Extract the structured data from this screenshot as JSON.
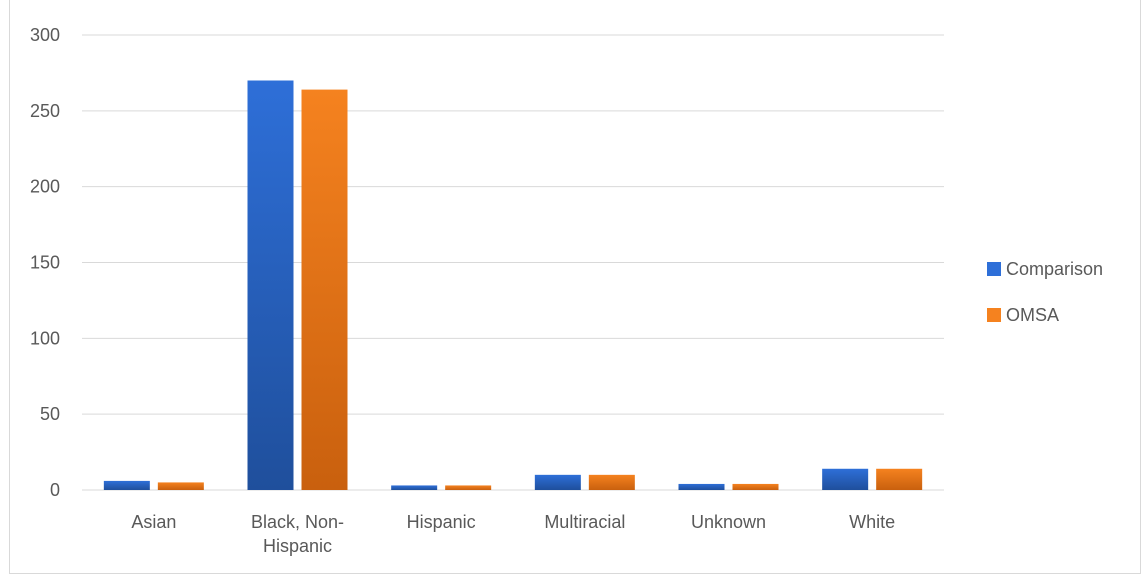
{
  "chart_data": {
    "type": "bar",
    "title": "",
    "xlabel": "",
    "ylabel": "",
    "categories": [
      [
        "Asian"
      ],
      [
        "Black, Non-",
        "Hispanic"
      ],
      [
        "Hispanic"
      ],
      [
        "Multiracial"
      ],
      [
        "Unknown"
      ],
      [
        "White"
      ]
    ],
    "series": [
      {
        "name": "Comparison",
        "color": "#2e6fd8",
        "colorDark": "#1f4f9c",
        "values": [
          6,
          270,
          3,
          10,
          4,
          14
        ]
      },
      {
        "name": "OMSA",
        "color": "#f5821f",
        "colorDark": "#c9600e",
        "values": [
          5,
          264,
          3,
          10,
          4,
          14
        ]
      }
    ],
    "ylim": [
      0,
      300
    ],
    "yticks": [
      0,
      50,
      100,
      150,
      200,
      250,
      300
    ],
    "grid": true,
    "legend": "right"
  }
}
